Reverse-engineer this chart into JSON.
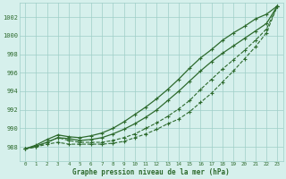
{
  "x": [
    0,
    1,
    2,
    3,
    4,
    5,
    6,
    7,
    8,
    9,
    10,
    11,
    12,
    13,
    14,
    15,
    16,
    17,
    18,
    19,
    20,
    21,
    22,
    23
  ],
  "line1": [
    987.8,
    988.2,
    988.8,
    989.3,
    989.1,
    989.0,
    989.2,
    989.5,
    990.0,
    990.7,
    991.5,
    992.3,
    993.2,
    994.2,
    995.3,
    996.5,
    997.6,
    998.5,
    999.5,
    1000.3,
    1001.0,
    1001.8,
    1002.3,
    1003.2
  ],
  "line2": [
    987.8,
    988.1,
    988.5,
    989.0,
    988.9,
    988.7,
    988.8,
    989.0,
    989.4,
    989.9,
    990.5,
    991.2,
    992.0,
    993.0,
    994.0,
    995.1,
    996.2,
    997.2,
    998.1,
    998.9,
    999.7,
    1000.5,
    1001.3,
    1003.2
  ],
  "line3": [
    987.8,
    988.0,
    988.5,
    989.0,
    988.7,
    988.5,
    988.5,
    988.5,
    988.7,
    989.0,
    989.4,
    990.0,
    990.6,
    991.3,
    992.1,
    993.0,
    994.2,
    995.3,
    996.4,
    997.4,
    998.4,
    999.5,
    1000.7,
    1003.2
  ],
  "line4": [
    987.8,
    988.0,
    988.3,
    988.5,
    988.3,
    988.3,
    988.3,
    988.3,
    988.4,
    988.6,
    989.0,
    989.4,
    989.9,
    990.5,
    991.0,
    991.8,
    992.8,
    993.8,
    995.0,
    996.2,
    997.5,
    998.8,
    1000.3,
    1003.2
  ],
  "line_color": "#2d6a2d",
  "background_color": "#d6f0ec",
  "grid_color": "#9ecec7",
  "text_color": "#2d6a2d",
  "xlabel": "Graphe pression niveau de la mer (hPa)",
  "ylim": [
    986.5,
    1003.5
  ],
  "xlim": [
    -0.5,
    23.5
  ],
  "yticks": [
    988,
    990,
    992,
    994,
    996,
    998,
    1000,
    1002
  ],
  "xticks": [
    0,
    1,
    2,
    3,
    4,
    5,
    6,
    7,
    8,
    9,
    10,
    11,
    12,
    13,
    14,
    15,
    16,
    17,
    18,
    19,
    20,
    21,
    22,
    23
  ]
}
